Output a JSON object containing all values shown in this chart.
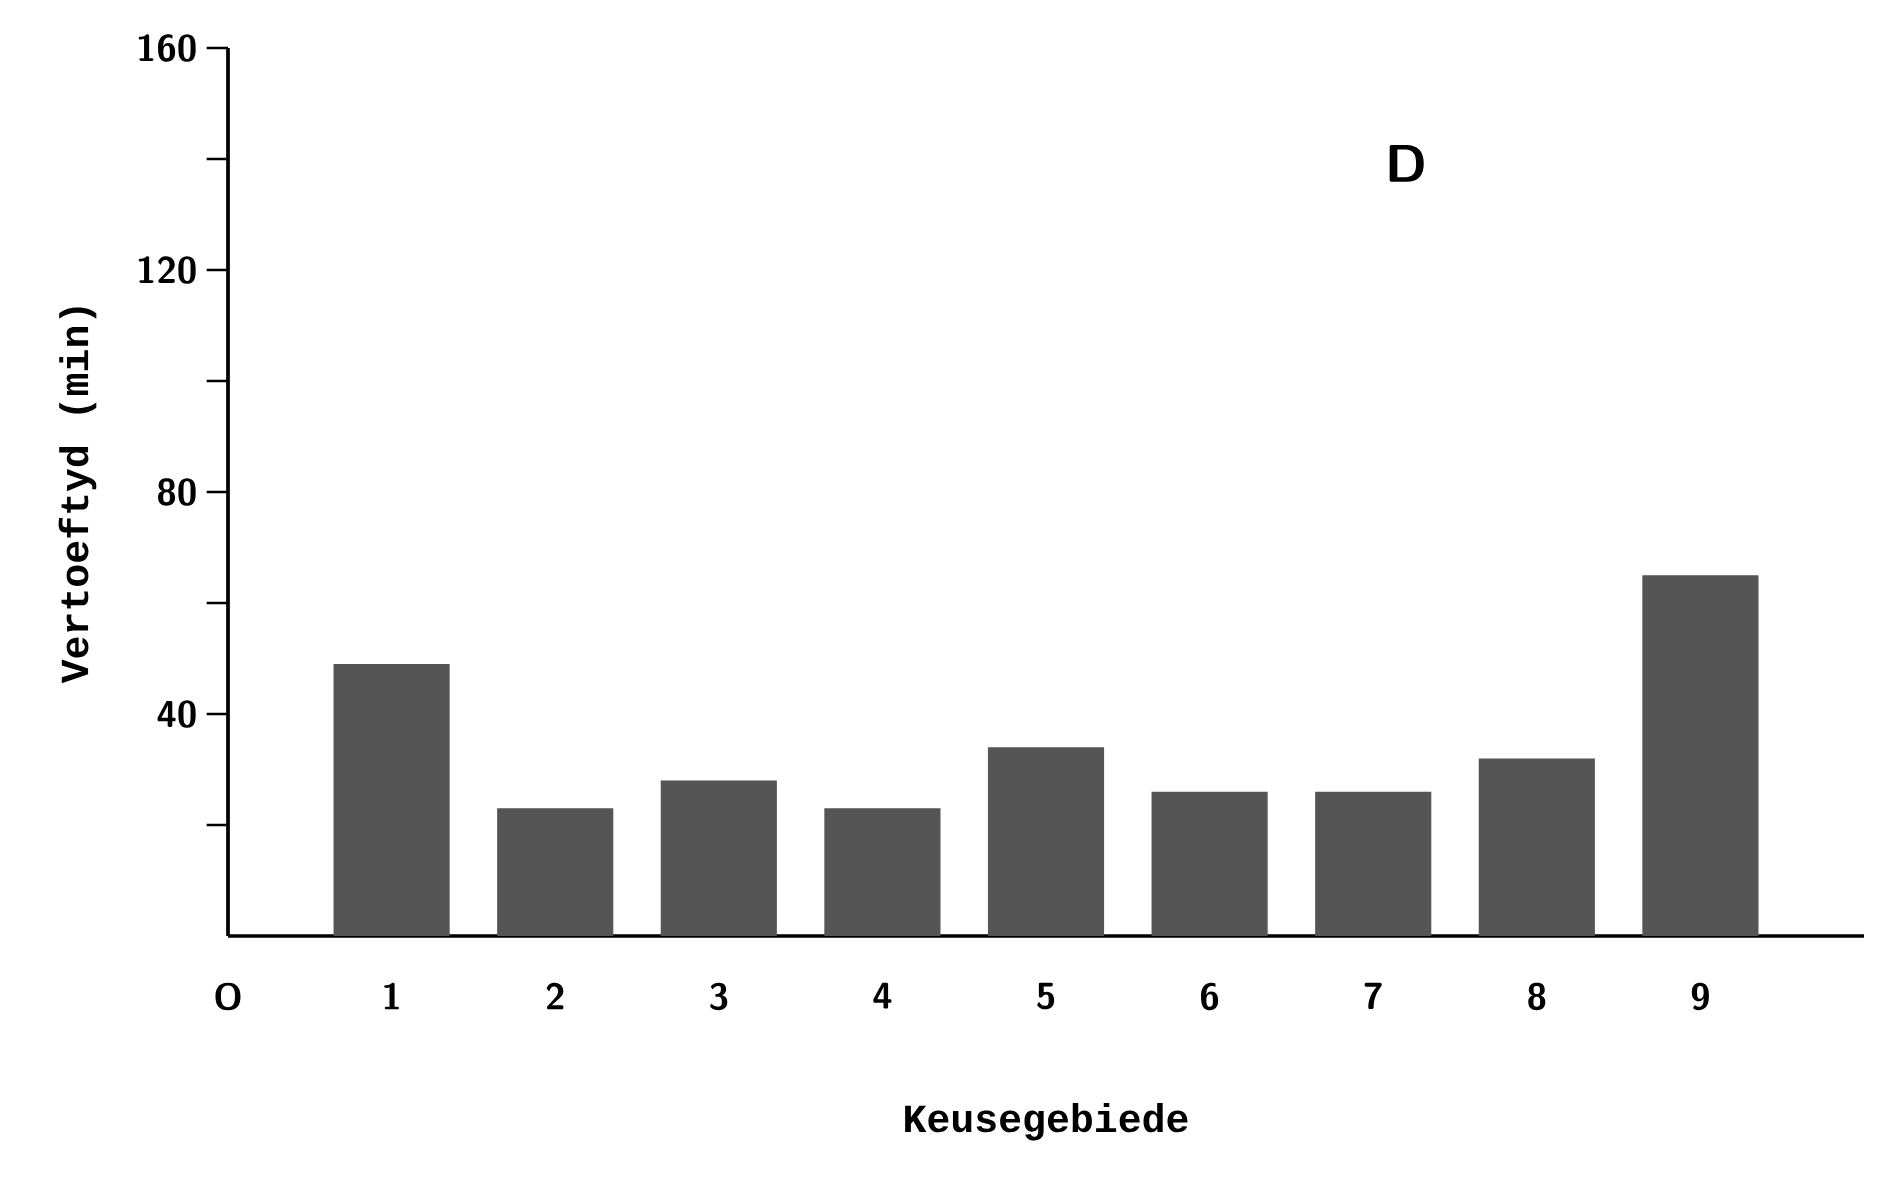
{
  "chart_data": {
    "type": "bar",
    "xlabel": "Keusegebiede",
    "ylabel": "Vertoeftyd (min)",
    "annotations": [
      "D"
    ],
    "x": [
      1,
      2,
      3,
      4,
      5,
      6,
      7,
      8,
      9
    ],
    "values": [
      49,
      23,
      28,
      23,
      34,
      26,
      26,
      32,
      65
    ],
    "color": "#555555",
    "xlim": [
      0,
      10
    ],
    "xticks": [
      {
        "value": 0,
        "label": "O"
      },
      1,
      2,
      3,
      4,
      5,
      6,
      7,
      8,
      9
    ],
    "ylim": [
      0,
      160
    ],
    "yticks": [
      {
        "value": 20,
        "label": null
      },
      40,
      {
        "value": 60,
        "label": null
      },
      80,
      {
        "value": 100,
        "label": null
      },
      120,
      {
        "value": 140,
        "label": null
      },
      160
    ],
    "grid": false
  }
}
